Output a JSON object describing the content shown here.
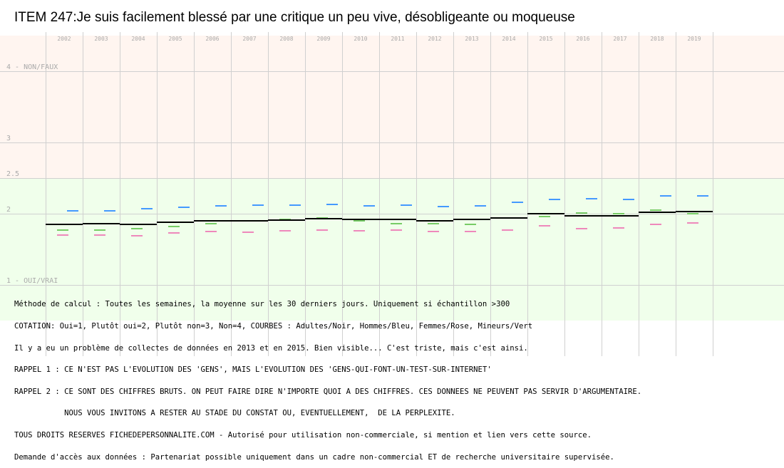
{
  "chart_data": {
    "type": "line",
    "title": "ITEM 247:Je suis facilement blessé par une critique un peu vive, désobligeante ou moqueuse",
    "categories": [
      "2002",
      "2003",
      "2004",
      "2005",
      "2006",
      "2007",
      "2008",
      "2009",
      "2010",
      "2011",
      "2012",
      "2013",
      "2014",
      "2015",
      "2016",
      "2017",
      "2018",
      "2019"
    ],
    "ylim": [
      1,
      4
    ],
    "y_ticks": [
      {
        "value": 4,
        "label": "4 - NON/FAUX"
      },
      {
        "value": 3,
        "label": "3"
      },
      {
        "value": 2.5,
        "label": "2.5"
      },
      {
        "value": 2,
        "label": "2"
      },
      {
        "value": 1,
        "label": "1 - OUI/VRAI"
      }
    ],
    "bands": [
      {
        "from": 2.5,
        "to": 4.5,
        "color": "#fff5f0"
      },
      {
        "from": 0.5,
        "to": 2.5,
        "color": "#f0ffeb"
      }
    ],
    "grid": true,
    "series": [
      {
        "key": "adultes",
        "color": "#000000",
        "values": [
          1.85,
          1.86,
          1.85,
          1.88,
          1.9,
          1.9,
          1.91,
          1.93,
          1.92,
          1.92,
          1.9,
          1.92,
          1.94,
          2.0,
          1.97,
          1.97,
          2.02,
          2.03
        ]
      },
      {
        "key": "hommes",
        "color": "#4499ff",
        "values": [
          2.04,
          2.04,
          2.07,
          2.09,
          2.11,
          2.12,
          2.12,
          2.13,
          2.11,
          2.12,
          2.1,
          2.11,
          2.16,
          2.2,
          2.21,
          2.2,
          2.25,
          2.25
        ]
      },
      {
        "key": "femmes",
        "color": "#ee88bb",
        "values": [
          1.7,
          1.7,
          1.69,
          1.73,
          1.75,
          1.74,
          1.76,
          1.77,
          1.76,
          1.77,
          1.75,
          1.75,
          1.77,
          1.83,
          1.79,
          1.8,
          1.85,
          1.87
        ]
      },
      {
        "key": "mineurs",
        "color": "#77cc66",
        "values": [
          1.77,
          1.77,
          1.79,
          1.82,
          1.86,
          null,
          1.92,
          1.94,
          1.9,
          1.86,
          1.86,
          1.85,
          1.94,
          1.96,
          2.01,
          2.0,
          2.05,
          2.0
        ]
      }
    ]
  },
  "notes": [
    "Méthode de calcul : Toutes les semaines, la moyenne sur les 30 derniers jours. Uniquement si échantillon >300",
    "COTATION: Oui=1, Plutôt oui=2, Plutôt non=3, Non=4, COURBES : Adultes/Noir, Hommes/Bleu, Femmes/Rose, Mineurs/Vert",
    "Il y a eu un problème de collectes de données en 2013 et en 2015. Bien visible... C'est triste, mais c'est ainsi.",
    "RAPPEL 1 : CE N'EST PAS L'EVOLUTION DES 'GENS', MAIS L'EVOLUTION DES 'GENS-QUI-FONT-UN-TEST-SUR-INTERNET'",
    "RAPPEL 2 : CE SONT DES CHIFFRES BRUTS. ON PEUT FAIRE DIRE N'IMPORTE QUOI A DES CHIFFRES. CES DONNEES NE PEUVENT PAS SERVIR D'ARGUMENTAIRE.",
    "           NOUS VOUS INVITONS A RESTER AU STADE DU CONSTAT OU, EVENTUELLEMENT,  DE LA PERPLEXITE.",
    "TOUS DROITS RESERVES FICHEDEPERSONNALITE.COM - Autorisé pour utilisation non-commerciale, si mention et lien vers cette source.",
    "Demande d'accès aux données : Partenariat possible uniquement dans un cadre non-commercial ET de recherche universitaire supervisée."
  ]
}
